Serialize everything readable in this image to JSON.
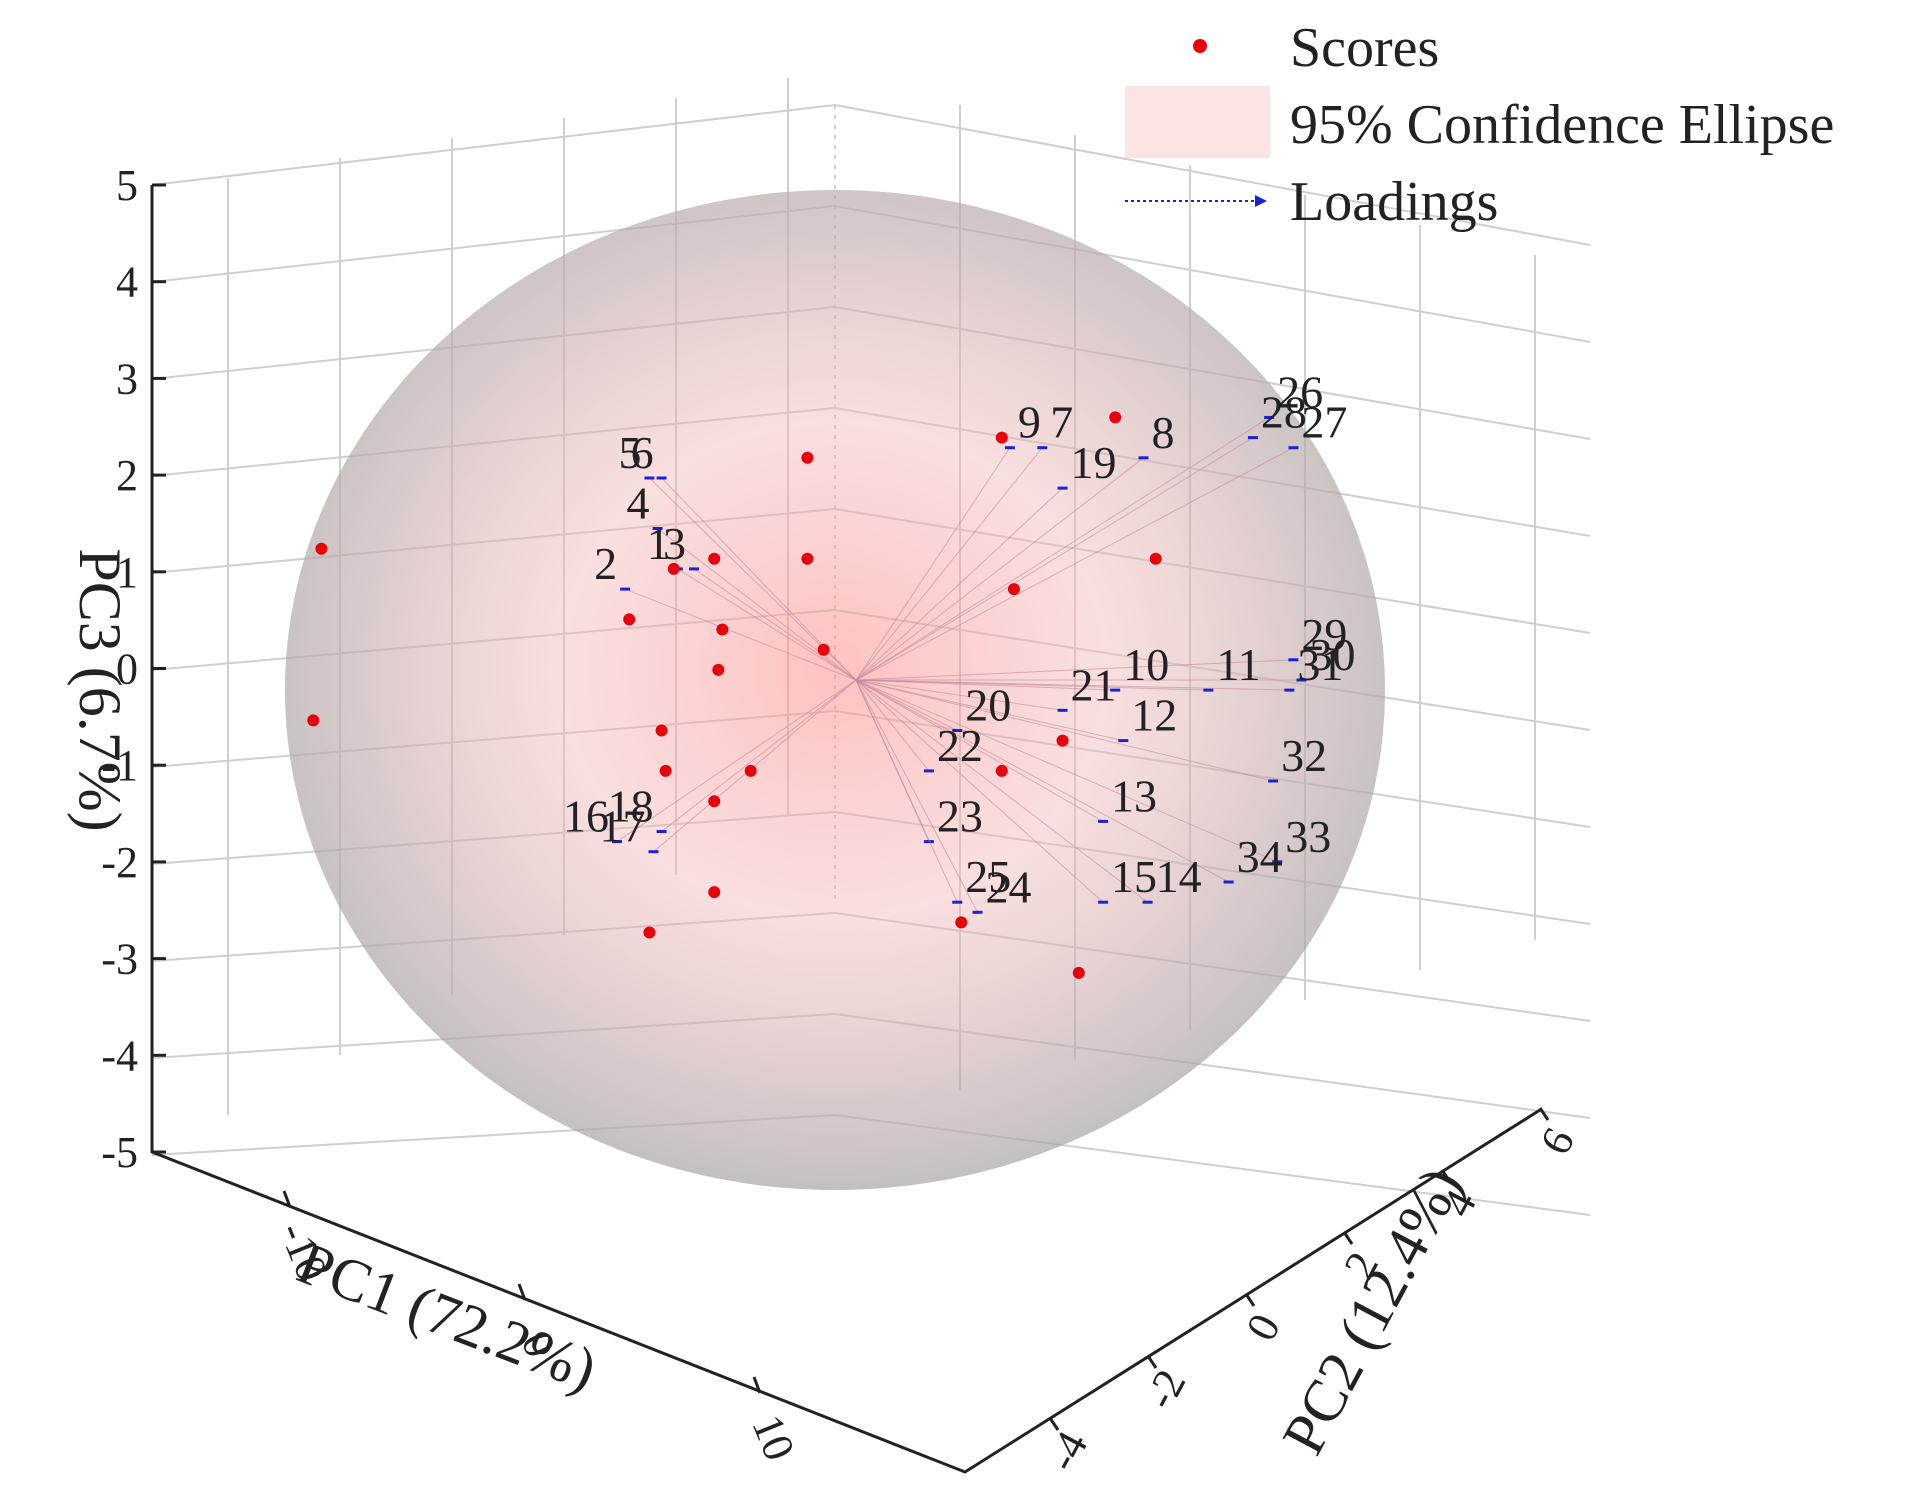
{
  "chart_data": {
    "type": "scatter",
    "projection": "3d",
    "axes": {
      "x": {
        "label": "PC1 (72.2%)",
        "ticks": [
          "-10",
          "0",
          "10"
        ],
        "range": [
          -15,
          15
        ]
      },
      "y": {
        "label": "PC2 (12.4%)",
        "ticks": [
          "-4",
          "-2",
          "0",
          "2",
          "4",
          "6"
        ],
        "range": [
          -4,
          6
        ]
      },
      "z": {
        "label": "PC3 (6.7%)",
        "ticks": [
          "5",
          "4",
          "3",
          "2",
          "1",
          "0",
          "-1",
          "-2",
          "-3",
          "-4",
          "-5"
        ],
        "range": [
          -5,
          5
        ]
      }
    },
    "grid": true,
    "legend": {
      "position": "top-right",
      "items": [
        {
          "label": "Scores",
          "kind": "dot",
          "color": "#e8000b"
        },
        {
          "label": "95% Confidence Ellipse",
          "kind": "patch",
          "color": "#fce4e4"
        },
        {
          "label": "Loadings",
          "kind": "arrow",
          "color": "#1a22d6"
        }
      ]
    },
    "confidence_ellipse_color": "#9e9e9e",
    "score_color": "#e8000b",
    "loading_color": "#1a22d6",
    "scores_pc1_pc3": [
      {
        "pc1": -13.2,
        "pc3": 1.3
      },
      {
        "pc1": -13.4,
        "pc3": -0.4
      },
      {
        "pc1": -5.6,
        "pc3": 0.6
      },
      {
        "pc1": -4.5,
        "pc3": 1.1
      },
      {
        "pc1": -3.5,
        "pc3": 1.2
      },
      {
        "pc1": -3.3,
        "pc3": 0.5
      },
      {
        "pc1": -3.4,
        "pc3": 0.1
      },
      {
        "pc1": -4.8,
        "pc3": -0.5
      },
      {
        "pc1": -4.7,
        "pc3": -0.9
      },
      {
        "pc1": -3.5,
        "pc3": -1.2
      },
      {
        "pc1": -2.6,
        "pc3": -0.9
      },
      {
        "pc1": -3.5,
        "pc3": -2.1
      },
      {
        "pc1": -5.1,
        "pc3": -2.5
      },
      {
        "pc1": -1.2,
        "pc3": 2.2
      },
      {
        "pc1": -1.2,
        "pc3": 1.2
      },
      {
        "pc1": -0.8,
        "pc3": 0.3
      },
      {
        "pc1": 3.6,
        "pc3": 2.4
      },
      {
        "pc1": 6.4,
        "pc3": 2.6
      },
      {
        "pc1": 7.4,
        "pc3": 1.2
      },
      {
        "pc1": 3.9,
        "pc3": 0.9
      },
      {
        "pc1": 3.6,
        "pc3": -0.9
      },
      {
        "pc1": 5.1,
        "pc3": -0.6
      },
      {
        "pc1": 2.6,
        "pc3": -2.4
      },
      {
        "pc1": 5.5,
        "pc3": -2.9
      }
    ],
    "loadings": [
      {
        "id": "1",
        "pc1": -4.4,
        "pc3": 1.1
      },
      {
        "id": "2",
        "pc1": -5.7,
        "pc3": 0.9
      },
      {
        "id": "3",
        "pc1": -4.0,
        "pc3": 1.1
      },
      {
        "id": "4",
        "pc1": -4.9,
        "pc3": 1.5
      },
      {
        "id": "5",
        "pc1": -5.1,
        "pc3": 2.0
      },
      {
        "id": "6",
        "pc1": -4.8,
        "pc3": 2.0
      },
      {
        "id": "7",
        "pc1": 4.6,
        "pc3": 2.3
      },
      {
        "id": "8",
        "pc1": 7.1,
        "pc3": 2.2
      },
      {
        "id": "9",
        "pc1": 3.8,
        "pc3": 2.3
      },
      {
        "id": "10",
        "pc1": 6.4,
        "pc3": -0.1
      },
      {
        "id": "11",
        "pc1": 8.7,
        "pc3": -0.1
      },
      {
        "id": "12",
        "pc1": 6.6,
        "pc3": -0.6
      },
      {
        "id": "13",
        "pc1": 6.1,
        "pc3": -1.4
      },
      {
        "id": "14",
        "pc1": 7.2,
        "pc3": -2.2
      },
      {
        "id": "15",
        "pc1": 6.1,
        "pc3": -2.2
      },
      {
        "id": "16",
        "pc1": -5.9,
        "pc3": -1.6
      },
      {
        "id": "17",
        "pc1": -5.0,
        "pc3": -1.7
      },
      {
        "id": "18",
        "pc1": -4.8,
        "pc3": -1.5
      },
      {
        "id": "19",
        "pc1": 5.1,
        "pc3": 1.9
      },
      {
        "id": "20",
        "pc1": 2.5,
        "pc3": -0.5
      },
      {
        "id": "21",
        "pc1": 5.1,
        "pc3": -0.3
      },
      {
        "id": "22",
        "pc1": 1.8,
        "pc3": -0.9
      },
      {
        "id": "23",
        "pc1": 1.8,
        "pc3": -1.6
      },
      {
        "id": "24",
        "pc1": 3.0,
        "pc3": -2.3
      },
      {
        "id": "25",
        "pc1": 2.5,
        "pc3": -2.2
      },
      {
        "id": "26",
        "pc1": 10.2,
        "pc3": 2.6
      },
      {
        "id": "27",
        "pc1": 10.8,
        "pc3": 2.3
      },
      {
        "id": "28",
        "pc1": 9.8,
        "pc3": 2.4
      },
      {
        "id": "29",
        "pc1": 10.8,
        "pc3": 0.2
      },
      {
        "id": "30",
        "pc1": 11.0,
        "pc3": 0.0
      },
      {
        "id": "31",
        "pc1": 10.7,
        "pc3": -0.1
      },
      {
        "id": "32",
        "pc1": 10.3,
        "pc3": -1.0
      },
      {
        "id": "33",
        "pc1": 10.4,
        "pc3": -1.8
      },
      {
        "id": "34",
        "pc1": 9.2,
        "pc3": -2.0
      }
    ]
  }
}
